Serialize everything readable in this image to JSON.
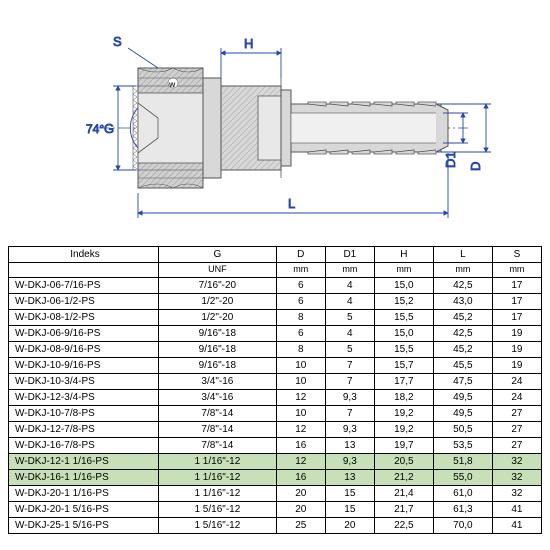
{
  "diagram": {
    "labels": {
      "S": "S",
      "H": "H",
      "G": "G",
      "D": "D",
      "D1": "D1",
      "L": "L",
      "angle": "74°"
    },
    "colors": {
      "dimension_line": "#2748a8",
      "part_fill": "#c8c8c8",
      "part_stroke": "#555555",
      "hatch": "#888888",
      "centerline": "#2748a8"
    }
  },
  "table": {
    "headers": [
      "Indeks",
      "G",
      "D",
      "D1",
      "H",
      "L",
      "S"
    ],
    "units": [
      "",
      "UNF",
      "mm",
      "mm",
      "mm",
      "mm",
      "mm"
    ],
    "highlighted_indices": [
      11,
      12
    ],
    "rows": [
      [
        "W-DKJ-06-7/16-PS",
        "7/16\"-20",
        "6",
        "4",
        "15,0",
        "42,5",
        "17"
      ],
      [
        "W-DKJ-06-1/2-PS",
        "1/2\"-20",
        "6",
        "4",
        "15,2",
        "43,0",
        "17"
      ],
      [
        "W-DKJ-08-1/2-PS",
        "1/2\"-20",
        "8",
        "5",
        "15,5",
        "45,2",
        "17"
      ],
      [
        "W-DKJ-06-9/16-PS",
        "9/16\"-18",
        "6",
        "4",
        "15,0",
        "42,5",
        "19"
      ],
      [
        "W-DKJ-08-9/16-PS",
        "9/16\"-18",
        "8",
        "5",
        "15,5",
        "45,2",
        "19"
      ],
      [
        "W-DKJ-10-9/16-PS",
        "9/16\"-18",
        "10",
        "7",
        "15,7",
        "45,5",
        "19"
      ],
      [
        "W-DKJ-10-3/4-PS",
        "3/4\"-16",
        "10",
        "7",
        "17,7",
        "47,5",
        "24"
      ],
      [
        "W-DKJ-12-3/4-PS",
        "3/4\"-16",
        "12",
        "9,3",
        "18,2",
        "49,5",
        "24"
      ],
      [
        "W-DKJ-10-7/8-PS",
        "7/8\"-14",
        "10",
        "7",
        "19,2",
        "49,5",
        "27"
      ],
      [
        "W-DKJ-12-7/8-PS",
        "7/8\"-14",
        "12",
        "9,3",
        "19,2",
        "50,5",
        "27"
      ],
      [
        "W-DKJ-16-7/8-PS",
        "7/8\"-14",
        "16",
        "13",
        "19,7",
        "53,5",
        "27"
      ],
      [
        "W-DKJ-12-1 1/16-PS",
        "1 1/16\"-12",
        "12",
        "9,3",
        "20,5",
        "51,8",
        "32"
      ],
      [
        "W-DKJ-16-1 1/16-PS",
        "1 1/16\"-12",
        "16",
        "13",
        "21,2",
        "55,0",
        "32"
      ],
      [
        "W-DKJ-20-1 1/16-PS",
        "1 1/16\"-12",
        "20",
        "15",
        "21,4",
        "61,0",
        "32"
      ],
      [
        "W-DKJ-20-1 5/16-PS",
        "1 5/16\"-12",
        "20",
        "15",
        "21,7",
        "61,3",
        "41"
      ],
      [
        "W-DKJ-25-1 5/16-PS",
        "1 5/16\"-12",
        "25",
        "20",
        "22,5",
        "70,0",
        "41"
      ]
    ]
  }
}
